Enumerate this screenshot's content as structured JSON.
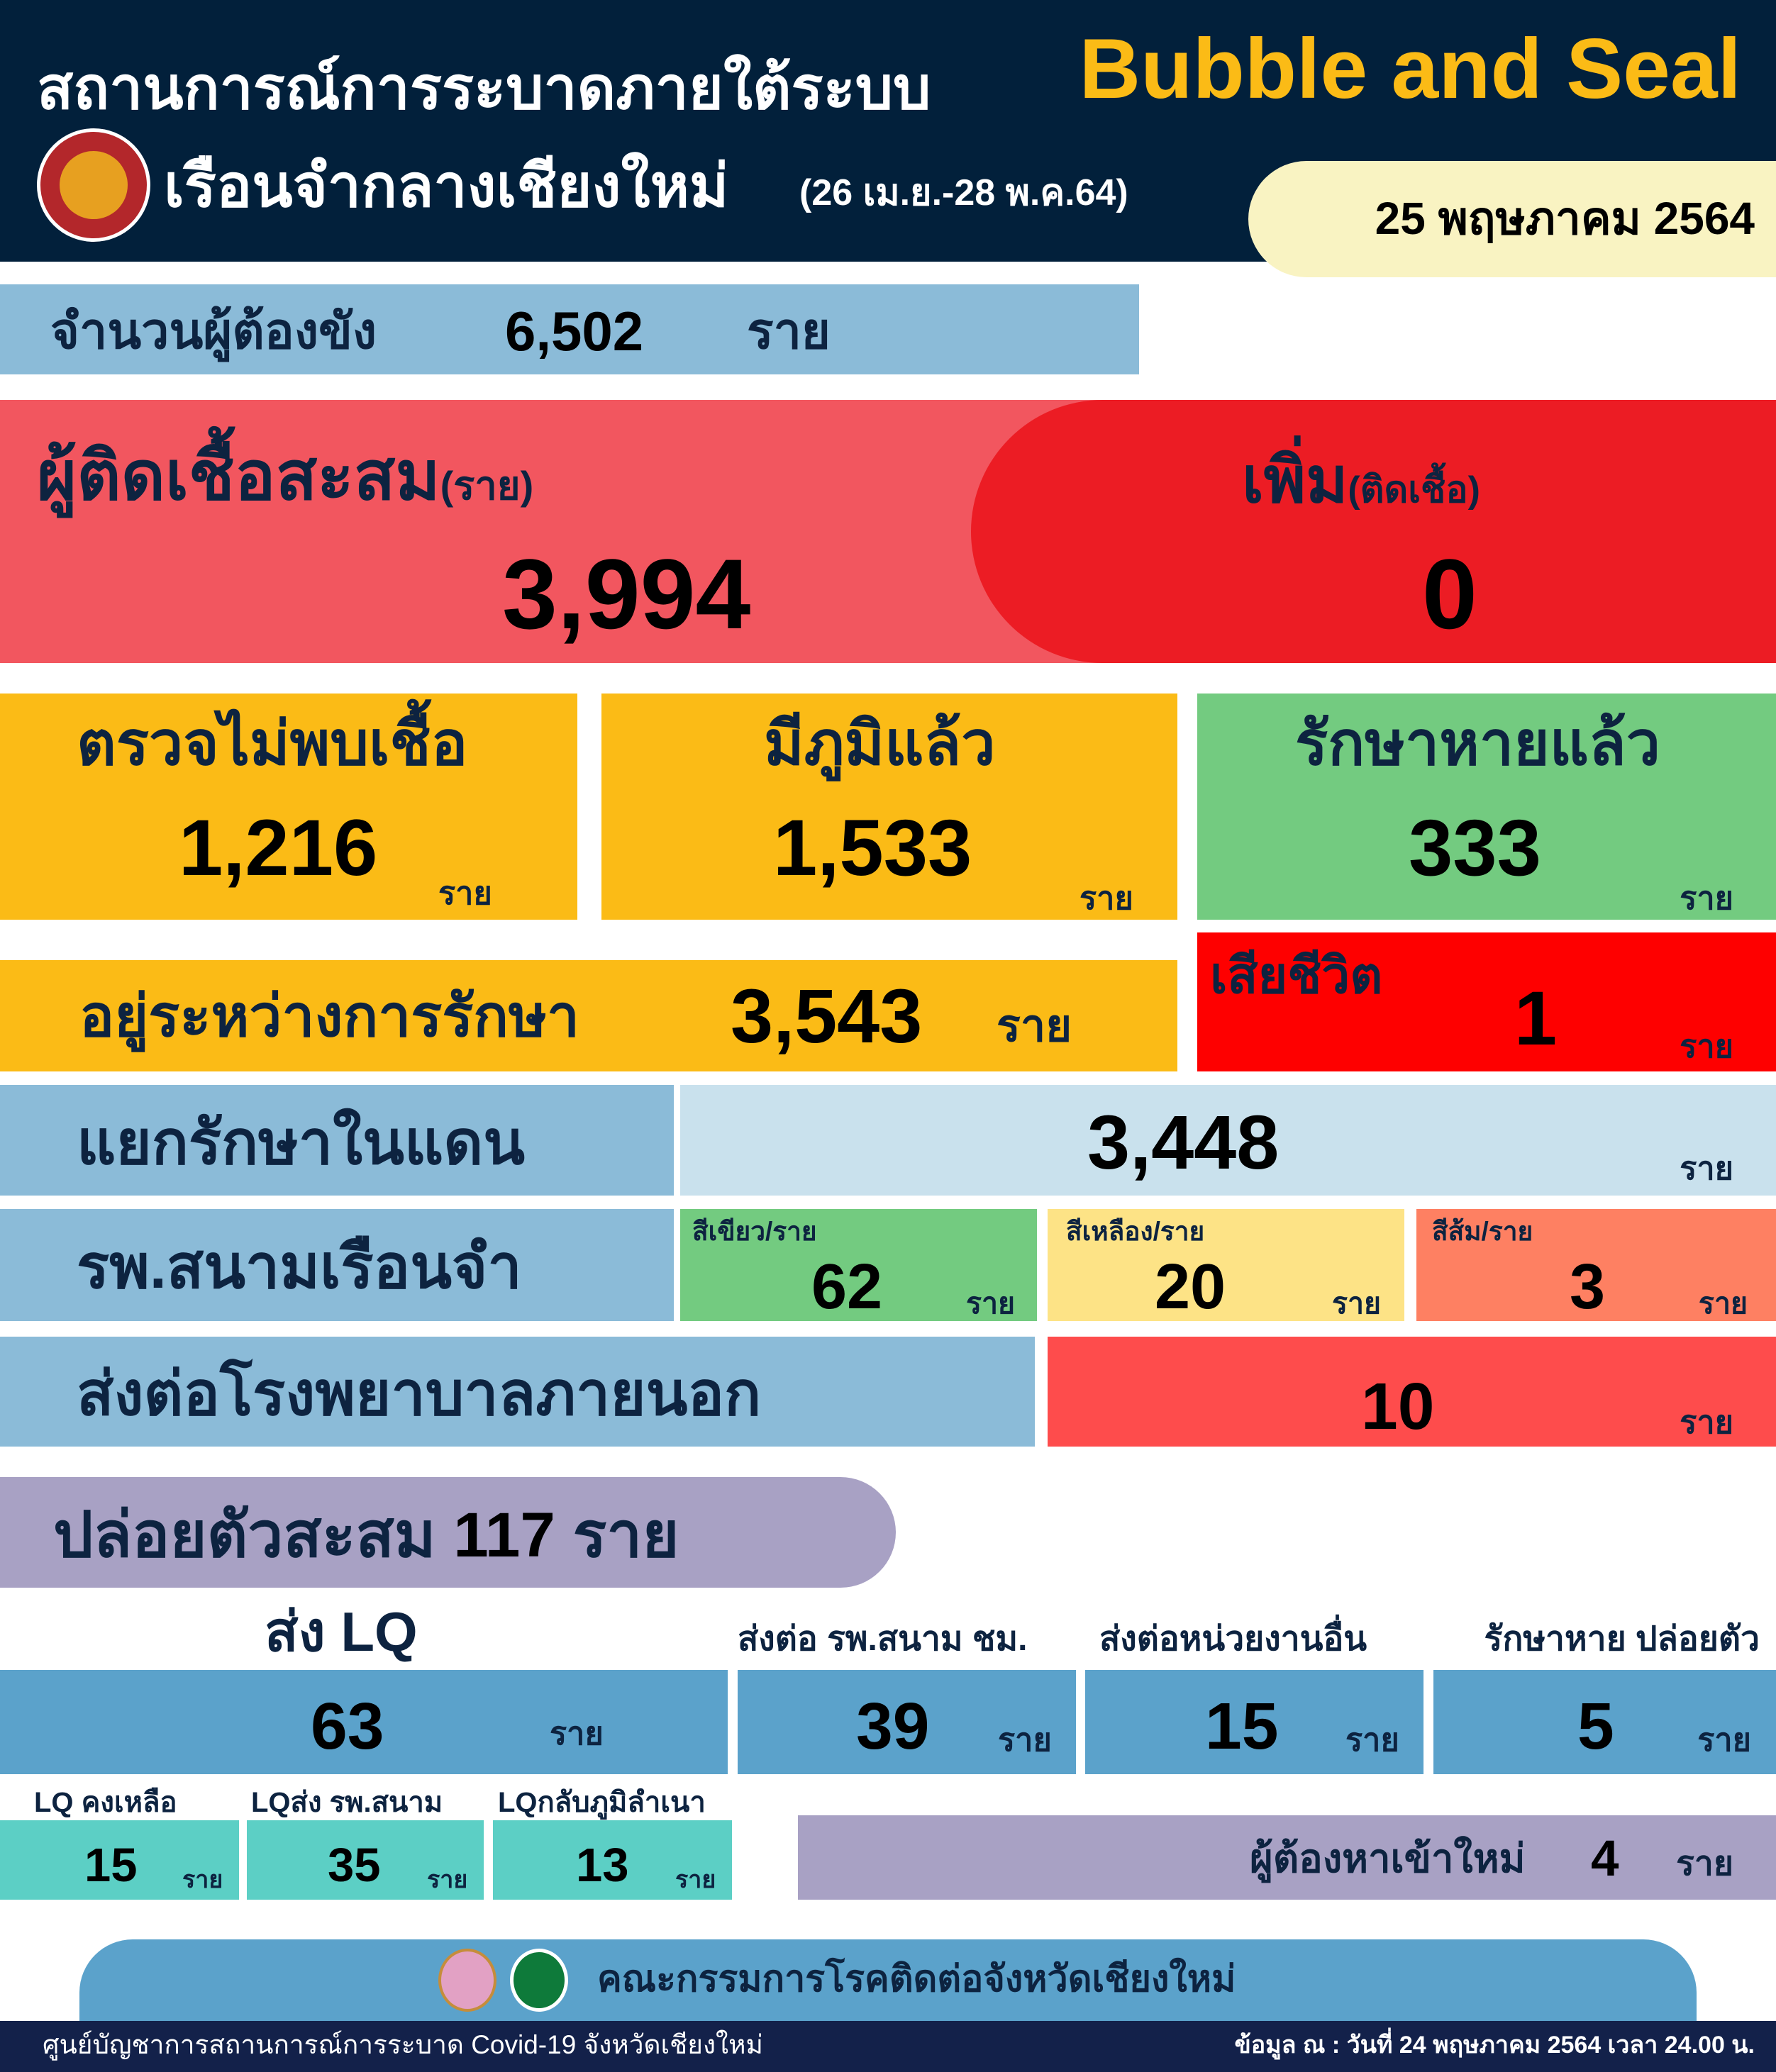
{
  "header": {
    "title_th": "สถานการณ์การระบาดภายใต้ระบบ",
    "title_en": "Bubble and Seal",
    "subtitle": "เรือนจำกลางเชียงใหม่",
    "period": "(26 เม.ย.-28 พ.ค.64)",
    "date": "25 พฤษภาคม 2564",
    "logo": "department-of-corrections-seal"
  },
  "inmates": {
    "label": "จำนวนผู้ต้องขัง",
    "value": "6,502",
    "unit": "ราย"
  },
  "cumulative": {
    "label": "ผู้ติดเชื้อสะสม",
    "unit_paren": "(ราย)",
    "value": "3,994"
  },
  "new": {
    "label": "เพิ่ม",
    "sub": "(ติดเชื้อ)",
    "value": "0"
  },
  "stats": [
    {
      "label": "ตรวจไม่พบเชื้อ",
      "value": "1,216",
      "unit": "ราย"
    },
    {
      "label": "มีภูมิแล้ว",
      "value": "1,533",
      "unit": "ราย"
    },
    {
      "label": "รักษาหายแล้ว",
      "value": "333",
      "unit": "ราย"
    }
  ],
  "treating": {
    "label": "อยู่ระหว่างการรักษา",
    "value": "3,543",
    "unit": "ราย"
  },
  "deaths": {
    "label": "เสียชีวิต",
    "value": "1",
    "unit": "ราย"
  },
  "isolation": {
    "label": "แยกรักษาในแดน",
    "value": "3,448",
    "unit": "ราย"
  },
  "field_hospital": {
    "label": "รพ.สนามเรือนจำ",
    "items": [
      {
        "label": "สีเขียว/ราย",
        "value": "62",
        "unit": "ราย"
      },
      {
        "label": "สีเหลือง/ราย",
        "value": "20",
        "unit": "ราย"
      },
      {
        "label": "สีส้ม/ราย",
        "value": "3",
        "unit": "ราย"
      }
    ]
  },
  "referral": {
    "label": "ส่งต่อโรงพยาบาลภายนอก",
    "value": "10",
    "unit": "ราย"
  },
  "released": {
    "label": "ปล่อยตัวสะสม",
    "value": "117",
    "unit": "ราย"
  },
  "release_breakdown": [
    {
      "label": "ส่ง LQ",
      "value": "63",
      "unit": "ราย"
    },
    {
      "label": "ส่งต่อ รพ.สนาม ชม.",
      "value": "39",
      "unit": "ราย"
    },
    {
      "label": "ส่งต่อหน่วยงานอื่น",
      "value": "15",
      "unit": "ราย"
    },
    {
      "label": "รักษาหาย ปล่อยตัว",
      "value": "5",
      "unit": "ราย"
    }
  ],
  "lq": [
    {
      "label": "LQ คงเหลือ",
      "value": "15",
      "unit": "ราย"
    },
    {
      "label": "LQส่ง รพ.สนาม",
      "value": "35",
      "unit": "ราย"
    },
    {
      "label": "LQกลับภูมิลำเนา",
      "value": "13",
      "unit": "ราย"
    }
  ],
  "new_suspects": {
    "label": "ผู้ต้องหาเข้าใหม่",
    "value": "4",
    "unit": "ราย"
  },
  "footer": {
    "committee": "คณะกรรมการโรคติดต่อจังหวัดเชียงใหม่",
    "center": "ศูนย์บัญชาการสถานการณ์การระบาด Covid-19 จังหวัดเชียงใหม่",
    "data_as_of": "ข้อมูล ณ :  วันที่ 24 พฤษภาคม 2564 เวลา 24.00 น."
  },
  "colors": {
    "navy": "#02203b",
    "yellow": "#fbbb16",
    "green": "#73cb80",
    "red": "#ec1c24",
    "blue": "#5ba2cb",
    "light_blue": "#8bbbd8",
    "teal": "#5ccfc5",
    "purple": "#a8a1c4"
  }
}
